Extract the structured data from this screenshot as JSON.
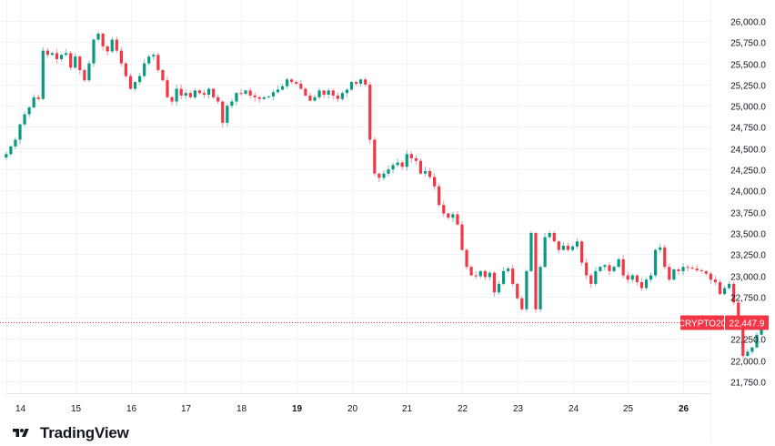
{
  "chart_data": {
    "type": "candlestick",
    "title": "",
    "symbol": "CRYPTO20",
    "last_price": 22447.9,
    "last_price_label": "22,447.9",
    "xlabel": "",
    "ylabel": "",
    "ylim": [
      21650,
      26100
    ],
    "y_ticks": [
      26000,
      25750,
      25500,
      25250,
      25000,
      24750,
      24500,
      24250,
      24000,
      23750,
      23500,
      23250,
      23000,
      22750,
      22500,
      22250,
      22000,
      21750
    ],
    "y_tick_labels": [
      "26,000.0",
      "25,750.0",
      "25,500.0",
      "25,250.0",
      "25,000.0",
      "24,750.0",
      "24,500.0",
      "24,250.0",
      "24,000.0",
      "23,750.0",
      "23,500.0",
      "23,250.0",
      "23,000.0",
      "22,750.0",
      "22,500.0",
      "22,250.0",
      "22,000.0",
      "21,750.0"
    ],
    "x_ticks": [
      14,
      15,
      16,
      17,
      18,
      19,
      20,
      21,
      22,
      23,
      24,
      25,
      26
    ],
    "x_tick_labels": [
      "14",
      "15",
      "16",
      "17",
      "18",
      "19",
      "20",
      "21",
      "22",
      "23",
      "24",
      "25",
      "26"
    ],
    "x_bold_ticks": [
      "19",
      "26"
    ],
    "grid": true,
    "colors": {
      "up": "#089981",
      "down": "#f23645",
      "grid": "#f0f3fa",
      "text": "#131722",
      "label_bg": "#f23645"
    },
    "candles_per_day": 12,
    "start_day": 13.75,
    "closes": [
      24430,
      24520,
      24600,
      24780,
      24900,
      24980,
      25100,
      25080,
      25650,
      25600,
      25620,
      25550,
      25600,
      25620,
      25450,
      25580,
      25420,
      25300,
      25500,
      25780,
      25850,
      25700,
      25640,
      25780,
      25650,
      25500,
      25350,
      25200,
      25280,
      25350,
      25500,
      25580,
      25600,
      25420,
      25300,
      25100,
      25050,
      25200,
      25120,
      25150,
      25100,
      25180,
      25150,
      25130,
      25200,
      25100,
      25050,
      24800,
      25000,
      25050,
      25150,
      25140,
      25180,
      25120,
      25100,
      25080,
      25100,
      25110,
      25160,
      25190,
      25230,
      25310,
      25280,
      25260,
      25200,
      25120,
      25060,
      25100,
      25180,
      25130,
      25180,
      25120,
      25080,
      25150,
      25190,
      25280,
      25260,
      25310,
      25250,
      24600,
      24200,
      24150,
      24200,
      24250,
      24300,
      24330,
      24280,
      24430,
      24380,
      24350,
      24200,
      24230,
      24160,
      24050,
      23830,
      23730,
      23680,
      23720,
      23600,
      23300,
      23100,
      23000,
      22990,
      23050,
      22980,
      23030,
      22800,
      22900,
      23050,
      23080,
      22900,
      22730,
      22600,
      23050,
      23500,
      22600,
      23100,
      23450,
      23500,
      23400,
      23300,
      23350,
      23300,
      23340,
      23400,
      23150,
      23000,
      22900,
      23050,
      23100,
      23120,
      23050,
      23100,
      23190,
      23000,
      22950,
      23000,
      22920,
      22850,
      22950,
      23000,
      23300,
      23330,
      23100,
      22950,
      23070,
      23050,
      23100,
      23090,
      23080,
      23060,
      23050,
      23020,
      22950,
      22920,
      22780,
      22850,
      22900,
      22680,
      22420,
      22050,
      22100,
      22150,
      22300,
      22447.9
    ]
  },
  "branding": {
    "name": "TradingView"
  }
}
